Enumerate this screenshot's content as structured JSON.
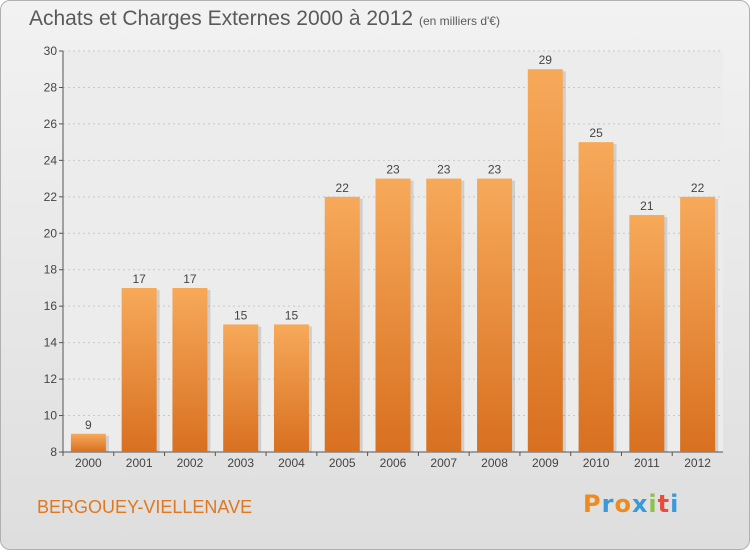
{
  "header": {
    "title": "Achats et Charges Externes 2000 à 2012",
    "subtitle": "(en milliers d'€)"
  },
  "footer": {
    "place": "BERGOUEY-VIELLENAVE",
    "logo": "Proxiti",
    "logo_colors": [
      "#f08a1c",
      "#3a9ad9",
      "#f08a1c",
      "#3a9ad9",
      "#8bc34a",
      "#e84c3d",
      "#3a9ad9"
    ]
  },
  "colors": {
    "bar_top": "#f7a95a",
    "bar_bottom": "#d87020",
    "axis": "#555555",
    "grid": "#c8c8c8"
  },
  "chart_data": {
    "type": "bar",
    "title": "Achats et Charges Externes 2000 à 2012",
    "subtitle": "(en milliers d'€)",
    "categories": [
      "2000",
      "2001",
      "2002",
      "2003",
      "2004",
      "2005",
      "2006",
      "2007",
      "2008",
      "2009",
      "2010",
      "2011",
      "2012"
    ],
    "values": [
      9,
      17,
      17,
      15,
      15,
      22,
      23,
      23,
      23,
      29,
      25,
      21,
      22
    ],
    "ylim": [
      8,
      30
    ],
    "yticks": [
      8,
      10,
      12,
      14,
      16,
      18,
      20,
      22,
      24,
      26,
      28,
      30
    ],
    "grid": true,
    "data_labels": true
  }
}
